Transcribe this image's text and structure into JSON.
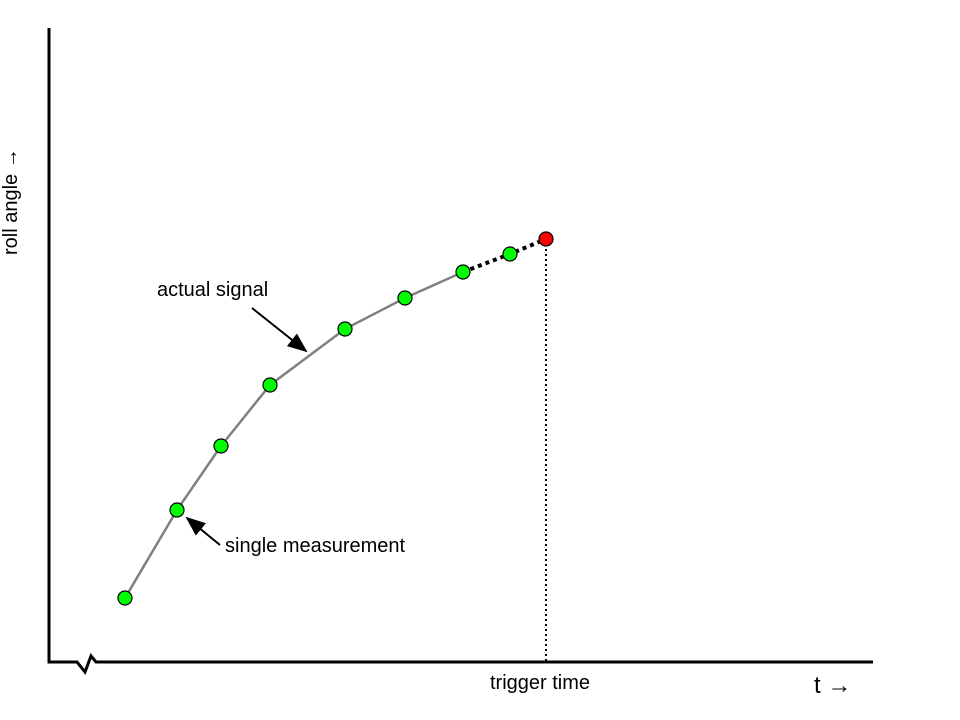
{
  "chart_data": {
    "type": "line",
    "title": "",
    "xlabel": "t →",
    "ylabel": "roll angle →",
    "grid": false,
    "x_axis_break": true,
    "annotations": {
      "actual_signal": "actual signal",
      "single_measurement": "single measurement",
      "trigger_time": "trigger time"
    },
    "series": [
      {
        "name": "actual signal",
        "style": "solid",
        "color": "#808080"
      },
      {
        "name": "single measurement",
        "style": "points",
        "color": "#00ff00",
        "count": 8
      },
      {
        "name": "trigger point",
        "style": "point",
        "color": "#ff0000",
        "count": 1
      }
    ],
    "extrapolation_style": "dotted",
    "colors": {
      "measurement": "#00ff00",
      "trigger": "#ff0000",
      "signal": "#808080",
      "axis": "#000000"
    }
  }
}
